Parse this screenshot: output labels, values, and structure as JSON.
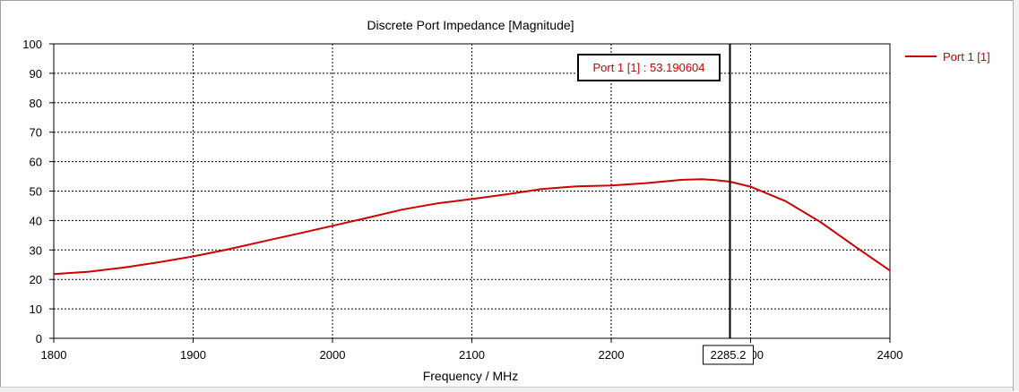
{
  "chart_data": {
    "type": "line",
    "title": "Discrete Port Impedance [Magnitude]",
    "xlabel": "Frequency / MHz",
    "ylabel": "",
    "xlim": [
      1800,
      2400
    ],
    "ylim": [
      0,
      100
    ],
    "xticks": [
      1800,
      1900,
      2000,
      2100,
      2200,
      2300,
      2400
    ],
    "yticks": [
      0,
      10,
      20,
      30,
      40,
      50,
      60,
      70,
      80,
      90,
      100
    ],
    "grid": true,
    "legend_position": "right",
    "series": [
      {
        "name": "Port 1 [1]",
        "color": "#cc0000",
        "x": [
          1800,
          1825,
          1850,
          1875,
          1900,
          1925,
          1950,
          1975,
          2000,
          2025,
          2050,
          2075,
          2100,
          2125,
          2150,
          2175,
          2200,
          2225,
          2250,
          2265,
          2275,
          2285.2,
          2300,
          2325,
          2350,
          2375,
          2400
        ],
        "y": [
          21.8,
          22.6,
          24.0,
          25.8,
          27.8,
          30.2,
          32.9,
          35.5,
          38.2,
          40.9,
          43.7,
          45.8,
          47.3,
          48.9,
          50.7,
          51.6,
          51.9,
          52.7,
          53.8,
          54.0,
          53.7,
          53.190604,
          51.5,
          46.6,
          39.5,
          31.2,
          23.0
        ]
      }
    ],
    "marker": {
      "x_label": "2285.2",
      "x": 2285.2,
      "readout": "Port 1 [1] : 53.190604"
    }
  }
}
